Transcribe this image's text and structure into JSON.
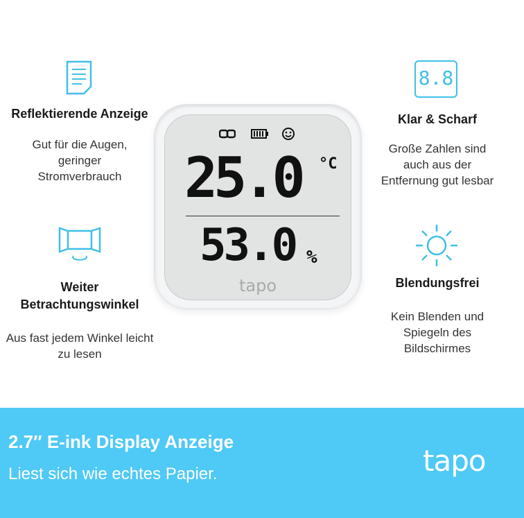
{
  "features": [
    {
      "icon": "document-icon",
      "title": "Reflektierende Anzeige",
      "text": "Gut für die Augen, geringer Stromverbrauch"
    },
    {
      "icon": "viewing-angle-icon",
      "title": "Weiter Betrachtungswinkel",
      "text": "Aus fast jedem Winkel leicht zu lesen"
    },
    {
      "icon": "digits-icon",
      "icon_text": "8.8",
      "title": "Klar & Scharf",
      "text": "Große Zahlen sind auch aus der Entfernung gut lesbar"
    },
    {
      "icon": "sun-icon",
      "title": "Blendungsfrei",
      "text": "Kein Blenden und Spiegeln des Bildschirmes"
    }
  ],
  "device": {
    "temperature": "25.0",
    "temp_unit": "°C",
    "humidity": "53.0",
    "humidity_unit": "%",
    "brand": "tapo",
    "status_icons": [
      "link-icon",
      "battery-icon",
      "smiley-icon"
    ]
  },
  "banner": {
    "title": "2.7″ E-ink Display Anzeige",
    "subtitle": "Liest sich wie echtes Papier.",
    "logo": "tapo"
  },
  "colors": {
    "accent": "#3fc0e8",
    "banner": "#4fc9f6"
  }
}
